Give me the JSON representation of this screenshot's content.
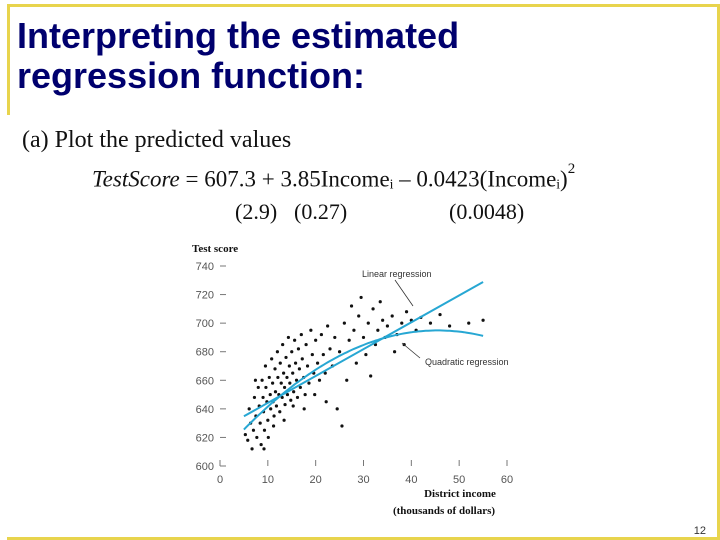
{
  "slide": {
    "title": "Interpreting the estimated\nregression function:",
    "subtitle": "(a) Plot the predicted values",
    "page_number": "12",
    "accent_color": "#e8d44d",
    "title_color": "#00006e"
  },
  "equation": {
    "lhs": "TestScore",
    "text": " = 607.3 + 3.85Incomeᵢ – 0.0423(Incomeᵢ)",
    "power": "2",
    "se_1": "(2.9)",
    "se_2": "(0.27)",
    "se_3": "(0.0048)"
  },
  "chart_data": {
    "type": "scatter",
    "ylabel": "Test score",
    "xlabel_line1": "District income",
    "xlabel_line2": "(thousands of dollars)",
    "xlim": [
      0,
      60
    ],
    "ylim": [
      600,
      740
    ],
    "x_ticks": [
      0,
      10,
      20,
      30,
      40,
      50,
      60
    ],
    "y_ticks": [
      600,
      620,
      640,
      660,
      680,
      700,
      720,
      740
    ],
    "annotations": {
      "linear": "Linear regression",
      "quadratic": "Quadratic regression"
    },
    "lines": {
      "linear": {
        "intercept": 625.4,
        "slope": 1.88,
        "x_range": [
          5,
          55
        ]
      },
      "quadratic": {
        "intercept": 607.3,
        "b1": 3.85,
        "b2": -0.0423,
        "x_range": [
          5,
          55
        ]
      }
    },
    "line_color": "#27a7d3",
    "point_color": "#111111",
    "points": [
      [
        5.3,
        622
      ],
      [
        5.8,
        618
      ],
      [
        6.1,
        640
      ],
      [
        6.4,
        630
      ],
      [
        6.7,
        612
      ],
      [
        7.0,
        625
      ],
      [
        7.2,
        648
      ],
      [
        7.5,
        635
      ],
      [
        7.7,
        620
      ],
      [
        8.0,
        655
      ],
      [
        8.2,
        642
      ],
      [
        8.4,
        630
      ],
      [
        8.6,
        615
      ],
      [
        8.8,
        660
      ],
      [
        9.0,
        648
      ],
      [
        9.1,
        638
      ],
      [
        9.3,
        625
      ],
      [
        9.5,
        670
      ],
      [
        9.6,
        655
      ],
      [
        9.8,
        645
      ],
      [
        10.0,
        632
      ],
      [
        10.1,
        620
      ],
      [
        10.3,
        662
      ],
      [
        10.5,
        650
      ],
      [
        10.6,
        640
      ],
      [
        10.8,
        675
      ],
      [
        11.0,
        658
      ],
      [
        11.1,
        645
      ],
      [
        11.3,
        635
      ],
      [
        11.5,
        668
      ],
      [
        11.6,
        652
      ],
      [
        11.8,
        642
      ],
      [
        12.0,
        680
      ],
      [
        12.1,
        662
      ],
      [
        12.3,
        650
      ],
      [
        12.5,
        638
      ],
      [
        12.6,
        672
      ],
      [
        12.8,
        658
      ],
      [
        13.0,
        648
      ],
      [
        13.1,
        685
      ],
      [
        13.3,
        665
      ],
      [
        13.5,
        655
      ],
      [
        13.6,
        643
      ],
      [
        13.8,
        676
      ],
      [
        14.0,
        662
      ],
      [
        14.1,
        650
      ],
      [
        14.3,
        690
      ],
      [
        14.5,
        670
      ],
      [
        14.6,
        658
      ],
      [
        14.8,
        646
      ],
      [
        15.0,
        680
      ],
      [
        15.2,
        665
      ],
      [
        15.4,
        652
      ],
      [
        15.6,
        688
      ],
      [
        15.8,
        672
      ],
      [
        16.0,
        660
      ],
      [
        16.2,
        648
      ],
      [
        16.4,
        682
      ],
      [
        16.6,
        668
      ],
      [
        16.8,
        655
      ],
      [
        17.0,
        692
      ],
      [
        17.2,
        675
      ],
      [
        17.5,
        662
      ],
      [
        17.8,
        650
      ],
      [
        18.0,
        685
      ],
      [
        18.3,
        670
      ],
      [
        18.6,
        658
      ],
      [
        19.0,
        695
      ],
      [
        19.3,
        678
      ],
      [
        19.6,
        665
      ],
      [
        20.0,
        688
      ],
      [
        20.4,
        672
      ],
      [
        20.8,
        660
      ],
      [
        21.2,
        692
      ],
      [
        21.6,
        678
      ],
      [
        22.0,
        665
      ],
      [
        22.5,
        698
      ],
      [
        23.0,
        682
      ],
      [
        23.5,
        670
      ],
      [
        24.0,
        690
      ],
      [
        25.0,
        680
      ],
      [
        26.0,
        700
      ],
      [
        27.0,
        688
      ],
      [
        28.0,
        695
      ],
      [
        29.0,
        705
      ],
      [
        30.0,
        690
      ],
      [
        31.0,
        700
      ],
      [
        32.0,
        710
      ],
      [
        33.0,
        695
      ],
      [
        34.0,
        702
      ],
      [
        35.0,
        698
      ],
      [
        36.0,
        705
      ],
      [
        37.0,
        692
      ],
      [
        38.0,
        700
      ],
      [
        39.0,
        708
      ],
      [
        40.0,
        702
      ],
      [
        41.0,
        695
      ],
      [
        42.0,
        704
      ],
      [
        44.0,
        700
      ],
      [
        46.0,
        706
      ],
      [
        48.0,
        698
      ],
      [
        52.0,
        700
      ],
      [
        55.0,
        702
      ],
      [
        7.4,
        660
      ],
      [
        9.2,
        612
      ],
      [
        11.2,
        628
      ],
      [
        13.4,
        632
      ],
      [
        15.3,
        642
      ],
      [
        17.6,
        640
      ],
      [
        19.8,
        650
      ],
      [
        22.2,
        645
      ],
      [
        24.5,
        640
      ],
      [
        26.5,
        660
      ],
      [
        28.5,
        672
      ],
      [
        30.5,
        678
      ],
      [
        32.5,
        685
      ],
      [
        34.5,
        690
      ],
      [
        36.5,
        680
      ],
      [
        38.5,
        685
      ],
      [
        27.5,
        712
      ],
      [
        29.5,
        718
      ],
      [
        33.5,
        715
      ],
      [
        31.5,
        663
      ],
      [
        25.5,
        628
      ]
    ]
  }
}
